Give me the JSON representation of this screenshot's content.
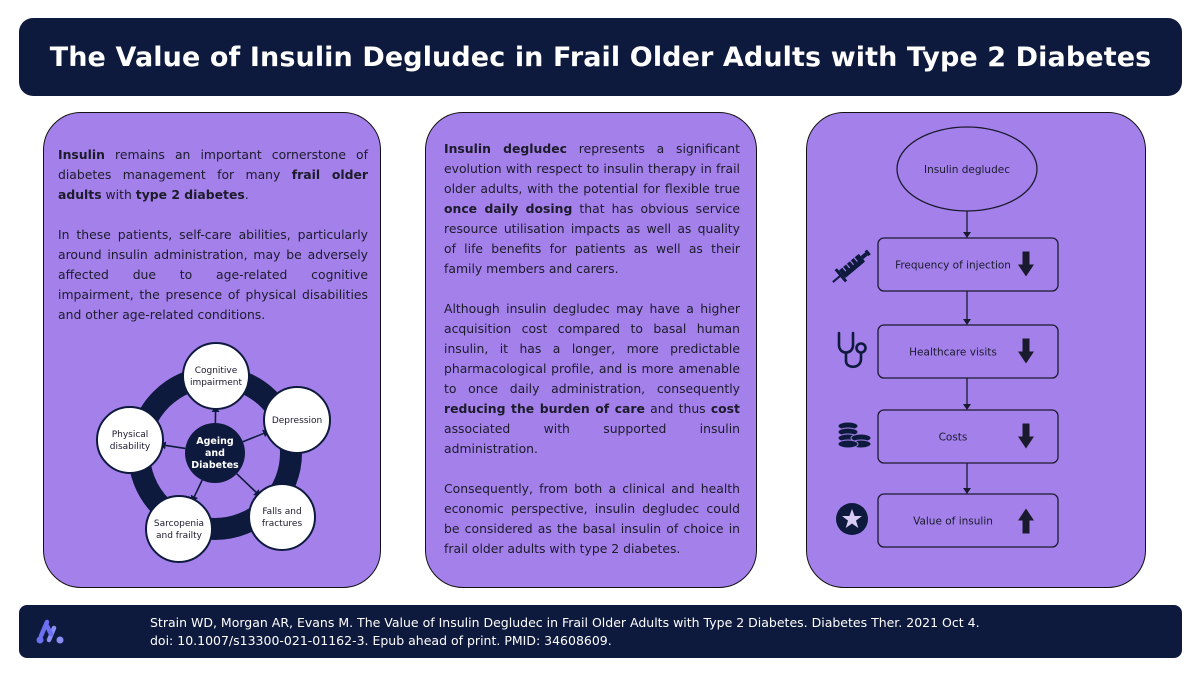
{
  "title": "The Value of Insulin Degludec in Frail Older Adults with Type 2 Diabetes",
  "panel1": {
    "para1": [
      {
        "t": "Insulin",
        "b": true
      },
      {
        "t": " remains an important cornerstone of diabetes management for many ",
        "b": false
      },
      {
        "t": "frail older adults",
        "b": true
      },
      {
        "t": " with ",
        "b": false
      },
      {
        "t": "type 2 diabetes",
        "b": true
      },
      {
        "t": ".",
        "b": false
      }
    ],
    "para2": "In these patients, self-care abilities, particularly around insulin administration, may be adversely affected due to age-related cognitive impairment, the presence of physical disabilities and other age-related conditions.",
    "diagram": {
      "center": [
        "Ageing",
        "and",
        "Diabetes"
      ],
      "nodes": [
        {
          "id": "cognitive",
          "lines": [
            "Cognitive",
            "impairment"
          ]
        },
        {
          "id": "depression",
          "lines": [
            "Depression"
          ]
        },
        {
          "id": "falls",
          "lines": [
            "Falls and",
            "fractures"
          ]
        },
        {
          "id": "sarcopenia",
          "lines": [
            "Sarcopenia",
            "and frailty"
          ]
        },
        {
          "id": "physical",
          "lines": [
            "Physical",
            "disability"
          ]
        }
      ]
    }
  },
  "panel2": {
    "para1": [
      {
        "t": "Insulin degludec",
        "b": true
      },
      {
        "t": " represents a significant evolution with respect to insulin therapy in frail older adults, with the potential for flexible true ",
        "b": false
      },
      {
        "t": "once daily dosing",
        "b": true
      },
      {
        "t": " that has obvious service resource utilisation impacts as well as quality of life benefits for patients as well as their family members and carers.",
        "b": false
      }
    ],
    "para2": [
      {
        "t": "Although insulin degludec may have a higher acquisition cost compared to basal human insulin, it has a longer, more predictable pharmacological profile, and is more amenable to once daily administration, consequently ",
        "b": false
      },
      {
        "t": "reducing the burden of care",
        "b": true
      },
      {
        "t": " and thus ",
        "b": false
      },
      {
        "t": "cost",
        "b": true
      },
      {
        "t": " associated with supported insulin administration.",
        "b": false
      }
    ],
    "para3": "Consequently, from both a clinical and health economic perspective, insulin degludec could be considered as the basal insulin of choice in frail older adults with type 2 diabetes."
  },
  "panel3": {
    "top": "Insulin degludec",
    "rows": [
      {
        "label": "Frequency of injection",
        "icon": "syringe-icon",
        "direction": "down"
      },
      {
        "label": "Healthcare visits",
        "icon": "stethoscope-icon",
        "direction": "down"
      },
      {
        "label": "Costs",
        "icon": "coins-icon",
        "direction": "down"
      },
      {
        "label": "Value of insulin",
        "icon": "star-icon",
        "direction": "up"
      }
    ]
  },
  "footer": {
    "line1": "Strain WD, Morgan AR, Evans M. The Value of Insulin Degludec in Frail Older Adults with Type 2 Diabetes. Diabetes Ther. 2021 Oct 4.",
    "line2": "doi: 10.1007/s13300-021-01162-3.  Epub ahead of print. PMID: 34608609.",
    "logo": "publisher-logo-icon"
  },
  "colors": {
    "navy": "#0e1a3d",
    "panel": "#a481ea",
    "box": "#a481ea",
    "text": "#1b1b2b"
  }
}
